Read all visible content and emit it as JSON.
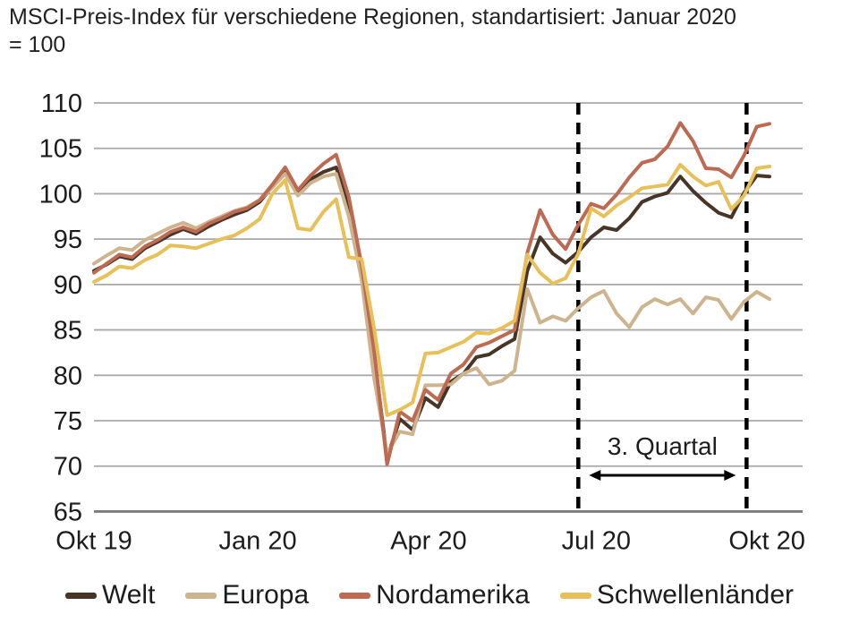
{
  "title": {
    "line1": "MSCI-Preis-Index für verschiedene Regionen, standartisiert: Januar 2020",
    "line2": "= 100"
  },
  "chart_data": {
    "type": "line",
    "title": "MSCI-Preis-Index für verschiedene Regionen, standartisiert: Januar 2020 = 100",
    "x_unit": "weeks, Okt 2019 - Okt 2020",
    "ylim": [
      65,
      110
    ],
    "grid": "horizontal",
    "legend_position": "bottom",
    "y_ticks": [
      65,
      70,
      75,
      80,
      85,
      90,
      95,
      100,
      105,
      110
    ],
    "x_ticks": [
      {
        "label": "Okt 19",
        "index": 0
      },
      {
        "label": "Jan 20",
        "index": 12.85
      },
      {
        "label": "Apr 20",
        "index": 26.25
      },
      {
        "label": "Jul 20",
        "index": 39.4
      },
      {
        "label": "Okt 20",
        "index": 52.8
      }
    ],
    "series": [
      {
        "name": "Welt",
        "color": "#473527",
        "values": [
          91.5,
          92.2,
          93.1,
          92.8,
          94.0,
          94.7,
          95.5,
          96.1,
          95.6,
          96.4,
          97.1,
          97.7,
          98.2,
          99.1,
          100.8,
          102.5,
          100.1,
          101.6,
          102.4,
          102.9,
          98.5,
          91.5,
          82.0,
          70.9,
          75.2,
          74.0,
          77.5,
          76.5,
          79.3,
          80.2,
          82.0,
          82.3,
          83.2,
          84.0,
          91.5,
          95.2,
          93.4,
          92.4,
          93.6,
          95.2,
          96.3,
          96.0,
          97.3,
          99.1,
          99.7,
          100.1,
          101.9,
          100.3,
          99.0,
          97.9,
          97.4,
          100.1,
          102.0,
          101.9
        ]
      },
      {
        "name": "Europa",
        "color": "#cdb48e",
        "values": [
          92.3,
          93.2,
          94.0,
          93.8,
          94.9,
          95.6,
          96.3,
          96.8,
          96.2,
          96.9,
          97.5,
          98.1,
          98.5,
          99.3,
          100.7,
          102.2,
          99.8,
          101.2,
          101.9,
          102.2,
          97.5,
          90.5,
          79.5,
          71.4,
          73.8,
          73.5,
          78.9,
          78.9,
          79.0,
          80.2,
          80.8,
          79.0,
          79.4,
          80.5,
          89.5,
          85.8,
          86.5,
          86.0,
          87.4,
          88.6,
          89.3,
          86.8,
          85.3,
          87.5,
          88.4,
          87.8,
          88.4,
          86.8,
          88.6,
          88.3,
          86.2,
          88.1,
          89.2,
          88.4
        ]
      },
      {
        "name": "Nordamerika",
        "color": "#bd6a52",
        "values": [
          91.3,
          92.3,
          93.3,
          93.0,
          94.2,
          94.9,
          95.8,
          96.3,
          95.8,
          96.7,
          97.3,
          98.0,
          98.4,
          99.3,
          101.0,
          102.9,
          100.4,
          102.0,
          103.3,
          104.3,
          99.6,
          92.1,
          82.5,
          70.2,
          76.0,
          75.0,
          78.4,
          77.3,
          80.2,
          81.2,
          83.1,
          83.6,
          84.3,
          85.0,
          93.5,
          98.2,
          95.5,
          93.9,
          96.6,
          98.9,
          98.4,
          99.9,
          101.8,
          103.4,
          103.8,
          105.2,
          107.8,
          105.8,
          102.8,
          102.7,
          101.8,
          104.2,
          107.4,
          107.7
        ]
      },
      {
        "name": "Schwellenländer",
        "color": "#e8c05a",
        "values": [
          90.3,
          91.0,
          92.0,
          91.8,
          92.7,
          93.3,
          94.3,
          94.2,
          94.0,
          94.5,
          95.0,
          95.4,
          96.2,
          97.2,
          100.0,
          101.5,
          96.2,
          96.0,
          98.0,
          99.4,
          93.0,
          92.8,
          85.0,
          75.6,
          76.2,
          77.0,
          82.4,
          82.5,
          83.1,
          83.7,
          84.7,
          84.6,
          85.2,
          86.0,
          93.3,
          91.3,
          90.1,
          90.7,
          93.4,
          98.4,
          97.5,
          98.7,
          99.6,
          100.6,
          100.8,
          101.0,
          103.2,
          101.9,
          100.9,
          101.3,
          98.3,
          99.8,
          102.8,
          103.0
        ]
      }
    ],
    "annotation": {
      "label": "3. Quartal",
      "start_index": 38.0,
      "end_index": 51.2
    }
  }
}
